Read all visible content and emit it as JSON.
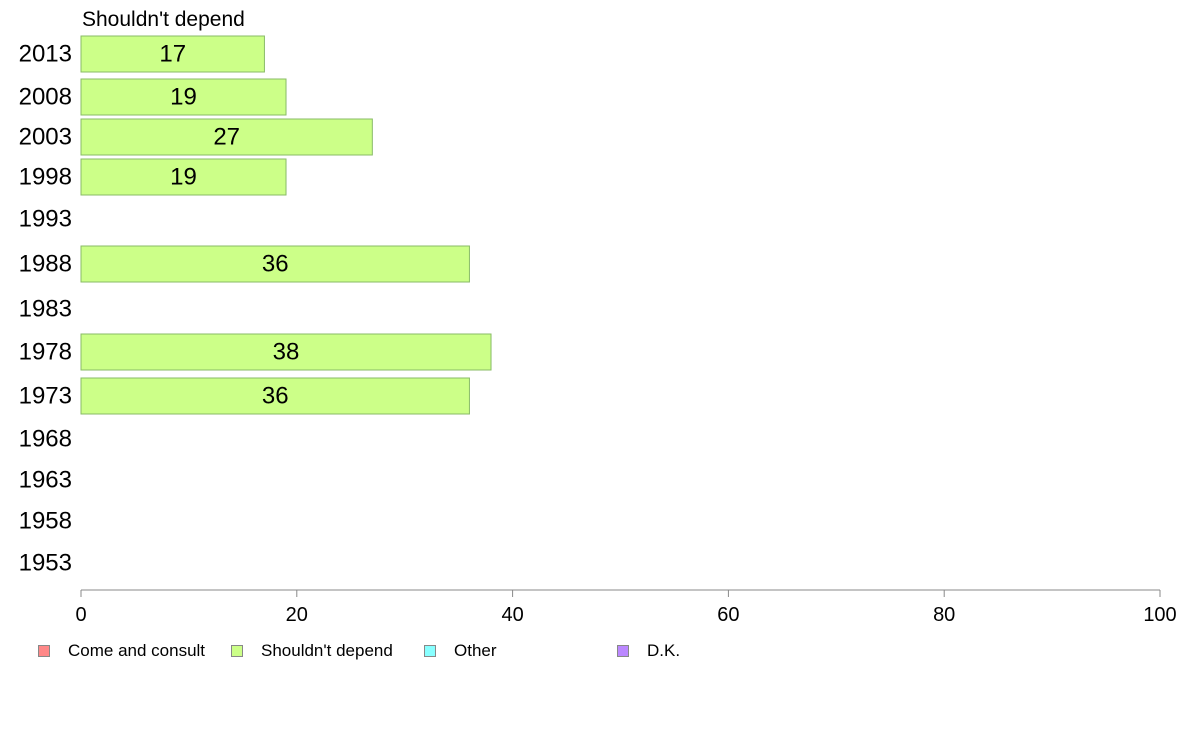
{
  "chart_data": {
    "type": "bar",
    "orientation": "horizontal",
    "title": "Shouldn't depend",
    "categories": [
      "2013",
      "2008",
      "2003",
      "1998",
      "1993",
      "1988",
      "1983",
      "1978",
      "1973",
      "1968",
      "1963",
      "1958",
      "1953"
    ],
    "series": [
      {
        "name": "Shouldn't depend",
        "color": "#ccff88",
        "values": [
          17,
          19,
          27,
          19,
          null,
          36,
          null,
          38,
          36,
          null,
          null,
          null,
          null
        ]
      }
    ],
    "xlim": [
      0,
      100
    ],
    "xticks": [
      "0",
      "20",
      "40",
      "60",
      "80",
      "100"
    ],
    "grid": false,
    "legend_position": "bottom-left",
    "legend": [
      {
        "label": "Come and consult",
        "color": "#ff8888"
      },
      {
        "label": "Shouldn't depend",
        "color": "#ccff88"
      },
      {
        "label": "Other",
        "color": "#88ffff"
      },
      {
        "label": "D.K.",
        "color": "#bb88ff"
      }
    ]
  }
}
